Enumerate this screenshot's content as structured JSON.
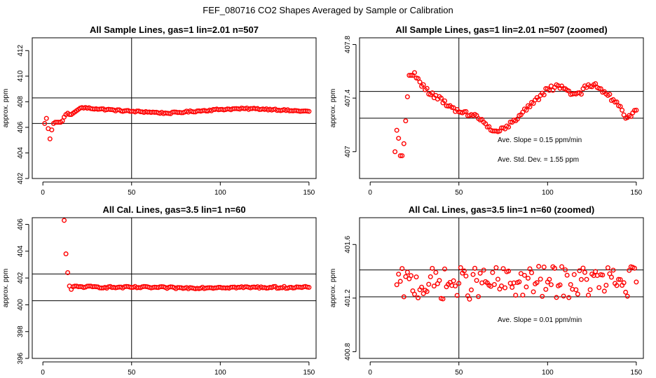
{
  "figure_title": "FEF_080716  CO2 Shapes Averaged by Sample or Calibration",
  "chart_data": [
    {
      "type": "scatter",
      "title": "All Sample Lines, gas=1 lin=2.01 n=507",
      "xlabel": "",
      "ylabel": "approx. ppm",
      "xlim": [
        -6,
        154
      ],
      "ylim": [
        402,
        413
      ],
      "xticks": [
        0,
        50,
        100,
        150
      ],
      "yticks": [
        402,
        404,
        406,
        408,
        410,
        412
      ],
      "vline_x": 50,
      "hlines_y": [
        406.3,
        408.3
      ],
      "annotations": [],
      "series": [
        {
          "anchors": [
            [
              1,
              406.3
            ],
            [
              2,
              406.7
            ],
            [
              3,
              405.9
            ],
            [
              4,
              405.1
            ],
            [
              5,
              405.8
            ],
            [
              6,
              406.3
            ],
            [
              7,
              406.4
            ],
            [
              8,
              406.4
            ],
            [
              9,
              406.4
            ],
            [
              10,
              406.4
            ],
            [
              11,
              406.5
            ],
            [
              12,
              406.8
            ],
            [
              13,
              407.0
            ],
            [
              14,
              407.1
            ],
            [
              15,
              407.0
            ],
            [
              16,
              407.0
            ],
            [
              17,
              407.1
            ],
            [
              18,
              407.2
            ],
            [
              19,
              407.3
            ],
            [
              20,
              407.4
            ],
            [
              22,
              407.55
            ],
            [
              30,
              407.45
            ],
            [
              40,
              407.35
            ],
            [
              50,
              407.25
            ],
            [
              60,
              407.2
            ],
            [
              70,
              407.1
            ],
            [
              80,
              407.2
            ],
            [
              90,
              407.3
            ],
            [
              100,
              407.4
            ],
            [
              110,
              407.45
            ],
            [
              120,
              407.45
            ],
            [
              130,
              407.4
            ],
            [
              140,
              407.3
            ],
            [
              150,
              407.25
            ]
          ],
          "jitter": 0.06,
          "x_from": 1,
          "x_to": 150
        }
      ]
    },
    {
      "type": "scatter",
      "title": "All Sample Lines, gas=1 lin=2.01 n=507 (zoomed)",
      "xlabel": "",
      "ylabel": "approx. ppm",
      "xlim": [
        -6,
        154
      ],
      "ylim": [
        406.8,
        407.85
      ],
      "xticks": [
        0,
        50,
        100,
        150
      ],
      "yticks": [
        407.0,
        407.4,
        407.8
      ],
      "vline_x": 50,
      "hlines_y": [
        407.25,
        407.45
      ],
      "annotations": [
        "Ave. Slope =  0.15  ppm/min",
        "Ave. Std. Dev. =  1.55  ppm"
      ],
      "series": [
        {
          "anchors": [
            [
              14,
              407.0
            ],
            [
              15,
              407.16
            ],
            [
              16,
              407.1
            ],
            [
              17,
              406.97
            ],
            [
              18,
              406.97
            ],
            [
              19,
              407.06
            ],
            [
              20,
              407.23
            ],
            [
              21,
              407.41
            ],
            [
              22,
              407.57
            ],
            [
              23,
              407.57
            ],
            [
              24,
              407.57
            ],
            [
              25,
              407.59
            ],
            [
              26,
              407.55
            ],
            [
              28,
              407.52
            ],
            [
              30,
              407.5
            ],
            [
              33,
              407.43
            ],
            [
              37,
              407.42
            ],
            [
              40,
              407.4
            ],
            [
              44,
              407.34
            ],
            [
              48,
              407.3
            ],
            [
              52,
              407.29
            ],
            [
              56,
              407.27
            ],
            [
              60,
              407.27
            ],
            [
              64,
              407.22
            ],
            [
              68,
              407.16
            ],
            [
              72,
              407.15
            ],
            [
              76,
              407.17
            ],
            [
              80,
              407.22
            ],
            [
              84,
              407.27
            ],
            [
              88,
              407.31
            ],
            [
              92,
              407.36
            ],
            [
              96,
              407.42
            ],
            [
              100,
              407.47
            ],
            [
              104,
              407.48
            ],
            [
              108,
              407.49
            ],
            [
              110,
              407.47
            ],
            [
              114,
              407.43
            ],
            [
              118,
              407.44
            ],
            [
              122,
              407.48
            ],
            [
              126,
              407.5
            ],
            [
              130,
              407.47
            ],
            [
              134,
              407.42
            ],
            [
              138,
              407.37
            ],
            [
              142,
              407.31
            ],
            [
              144,
              407.25
            ],
            [
              146,
              407.27
            ],
            [
              148,
              407.29
            ],
            [
              150,
              407.31
            ]
          ],
          "jitter": 0.022,
          "x_from": 14,
          "x_to": 150
        }
      ]
    },
    {
      "type": "scatter",
      "title": "All Cal. Lines, gas=3.5 lin=1 n=60",
      "xlabel": "",
      "ylabel": "approx. ppm",
      "xlim": [
        -6,
        154
      ],
      "ylim": [
        396,
        406.5
      ],
      "xticks": [
        0,
        50,
        100,
        150
      ],
      "yticks": [
        396,
        398,
        400,
        402,
        404,
        406
      ],
      "vline_x": 50,
      "hlines_y": [
        400.3,
        402.3
      ],
      "annotations": [],
      "series": [
        {
          "anchors": [
            [
              12,
              406.3
            ],
            [
              13,
              403.8
            ],
            [
              14,
              402.4
            ],
            [
              15,
              401.4
            ],
            [
              16,
              401.15
            ],
            [
              17,
              401.35
            ],
            [
              20,
              401.35
            ],
            [
              40,
              401.3
            ],
            [
              60,
              401.3
            ],
            [
              80,
              401.25
            ],
            [
              100,
              401.3
            ],
            [
              120,
              401.3
            ],
            [
              140,
              401.3
            ],
            [
              150,
              401.3
            ]
          ],
          "jitter": 0.07,
          "x_from": 12,
          "x_to": 150
        }
      ]
    },
    {
      "type": "scatter",
      "title": "All Cal. Lines, gas=3.5 lin=1 n=60 (zoomed)",
      "xlabel": "",
      "ylabel": "approx. ppm",
      "xlim": [
        -6,
        154
      ],
      "ylim": [
        400.75,
        401.8
      ],
      "xticks": [
        0,
        50,
        100,
        150
      ],
      "yticks": [
        400.8,
        401.2,
        401.6
      ],
      "vline_x": 50,
      "hlines_y": [
        401.21,
        401.41
      ],
      "annotations": [
        "Ave. Slope =  0.01  ppm/min"
      ],
      "series": [
        {
          "anchors": [
            [
              15,
              401.3
            ],
            [
              50,
              401.31
            ],
            [
              100,
              401.32
            ],
            [
              150,
              401.32
            ]
          ],
          "jitter": 0.12,
          "x_from": 15,
          "x_to": 150
        }
      ]
    }
  ]
}
